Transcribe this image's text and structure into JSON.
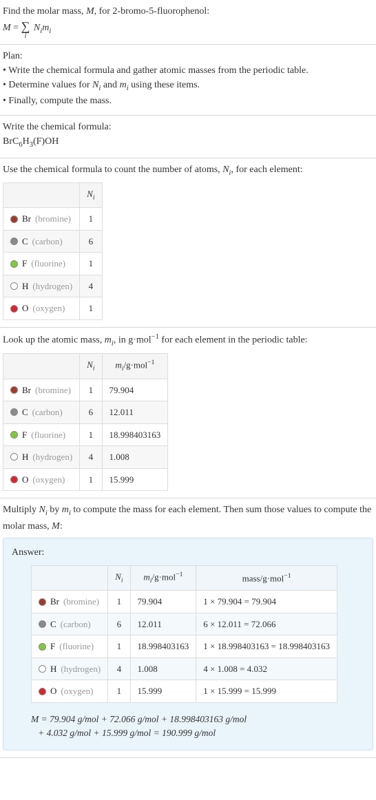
{
  "intro": {
    "line1_pre": "Find the molar mass, ",
    "line1_var": "M",
    "line1_mid": ", for 2-bromo-5-fluorophenol:",
    "eq_lhs": "M",
    "eq_eq": " = ",
    "eq_sigma_under": "i",
    "eq_rhs_a": "N",
    "eq_rhs_a_sub": "i",
    "eq_rhs_b": "m",
    "eq_rhs_b_sub": "i"
  },
  "plan": {
    "heading": "Plan:",
    "b1_pre": "• Write the chemical formula and gather atomic masses from the periodic table.",
    "b2_pre": "• Determine values for ",
    "b2_var1": "N",
    "b2_sub1": "i",
    "b2_mid": " and ",
    "b2_var2": "m",
    "b2_sub2": "i",
    "b2_post": " using these items.",
    "b3": "• Finally, compute the mass."
  },
  "chem": {
    "heading": "Write the chemical formula:",
    "p1": "BrC",
    "s1": "6",
    "p2": "H",
    "s2": "3",
    "p3": "(F)OH"
  },
  "count": {
    "text_pre": "Use the chemical formula to count the number of atoms, ",
    "text_var": "N",
    "text_sub": "i",
    "text_post": ", for each element:",
    "col_n": "N",
    "col_n_sub": "i"
  },
  "elements": [
    {
      "sym": "Br",
      "name": "(bromine)",
      "n": "1",
      "m": "79.904",
      "mass": "1 × 79.904 = 79.904",
      "color": "#a23a2a"
    },
    {
      "sym": "C",
      "name": "(carbon)",
      "n": "6",
      "m": "12.011",
      "mass": "6 × 12.011 = 72.066",
      "color": "#8a8a8a"
    },
    {
      "sym": "F",
      "name": "(fluorine)",
      "n": "1",
      "m": "18.998403163",
      "mass": "1 × 18.998403163 = 18.998403163",
      "color": "#7fc93a"
    },
    {
      "sym": "H",
      "name": "(hydrogen)",
      "n": "4",
      "m": "1.008",
      "mass": "4 × 1.008 = 4.032",
      "color": "#ffffff"
    },
    {
      "sym": "O",
      "name": "(oxygen)",
      "n": "1",
      "m": "15.999",
      "mass": "1 × 15.999 = 15.999",
      "color": "#d9262c"
    }
  ],
  "mass": {
    "text_pre": "Look up the atomic mass, ",
    "text_var": "m",
    "text_sub": "i",
    "text_mid": ", in g·mol",
    "text_sup": "−1",
    "text_post": " for each element in the periodic table:",
    "col_n": "N",
    "col_n_sub": "i",
    "col_m_pre": "m",
    "col_m_sub": "i",
    "col_m_unit_pre": "/g·mol",
    "col_m_unit_sup": "−1"
  },
  "mult": {
    "text_p1": "Multiply ",
    "text_v1": "N",
    "text_s1": "i",
    "text_p2": " by ",
    "text_v2": "m",
    "text_s2": "i",
    "text_p3": " to compute the mass for each element. Then sum those values to compute the molar mass, ",
    "text_v3": "M",
    "text_p4": ":"
  },
  "answer": {
    "label": "Answer:",
    "col_n": "N",
    "col_n_sub": "i",
    "col_m_pre": "m",
    "col_m_sub": "i",
    "col_m_unit_pre": "/g·mol",
    "col_m_unit_sup": "−1",
    "col_mass_pre": "mass/g·mol",
    "col_mass_sup": "−1",
    "final_l1": "M = 79.904 g/mol + 72.066 g/mol + 18.998403163 g/mol",
    "final_l2": "   + 4.032 g/mol + 15.999 g/mol = 190.999 g/mol"
  },
  "style": {
    "swatch_border": "#888888"
  }
}
